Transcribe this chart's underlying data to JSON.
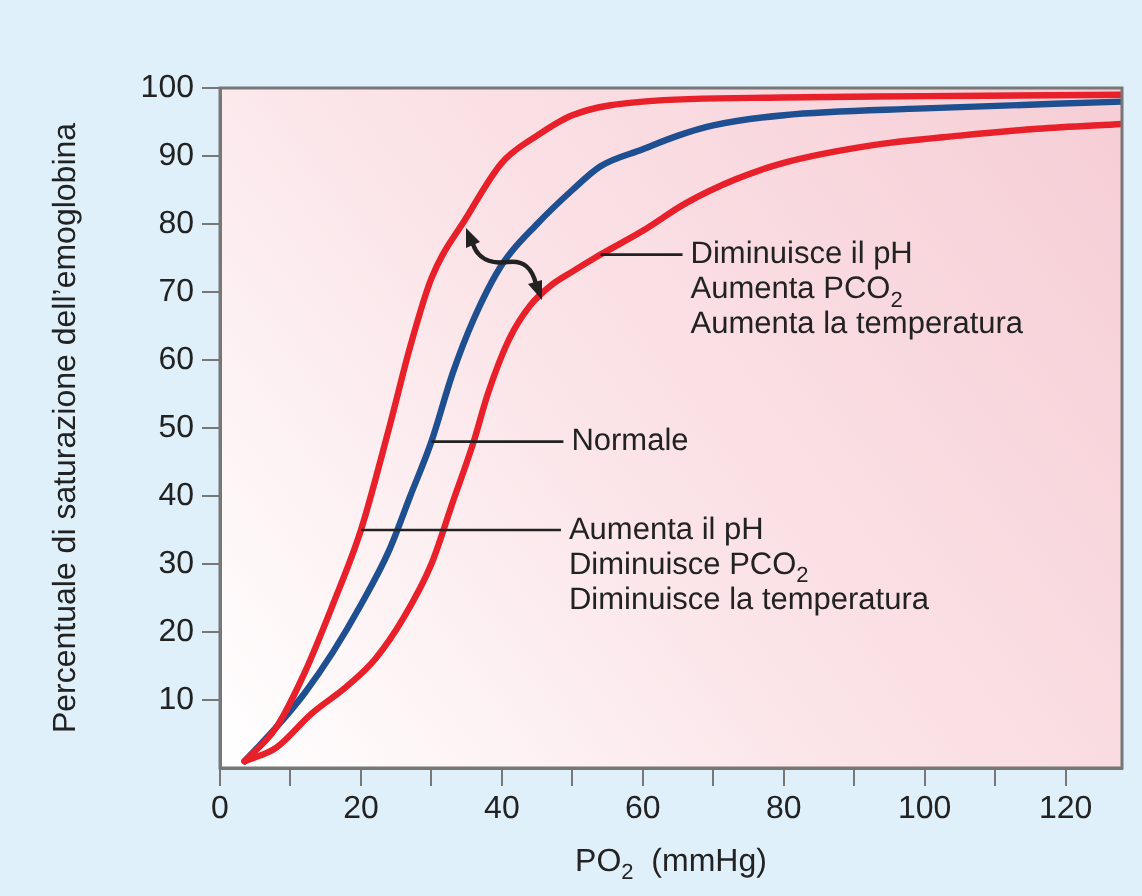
{
  "chart_data": {
    "type": "line",
    "xlabel": "PO$_{2}$  (mmHg)",
    "ylabel": "Percentuale di saturazione dell’emoglobina",
    "xlim": [
      0,
      128
    ],
    "ylim": [
      0,
      100
    ],
    "xticks": [
      0,
      {
        "value": 10,
        "label": null
      },
      20,
      {
        "value": 30,
        "label": null
      },
      40,
      {
        "value": 50,
        "label": null
      },
      60,
      {
        "value": 70,
        "label": null
      },
      80,
      {
        "value": 90,
        "label": null
      },
      100,
      {
        "value": 110,
        "label": null
      },
      120
    ],
    "yticks": [
      10,
      20,
      30,
      40,
      50,
      60,
      70,
      80,
      90,
      100
    ],
    "grid": false,
    "legend": false,
    "marker": "none",
    "line_style": "solid",
    "series": [
      {
        "color": "#e8202a",
        "x": [
          3.5,
          8,
          12,
          16,
          20,
          24,
          27,
          30,
          35,
          40,
          45,
          50,
          60,
          80,
          100,
          128
        ],
        "values": [
          1,
          6,
          14,
          24,
          35,
          50,
          62,
          72,
          81,
          89,
          93,
          96,
          98,
          98.6,
          98.8,
          99
        ]
      },
      {
        "color": "#1d4f91",
        "x": [
          3.5,
          8,
          12,
          16,
          20,
          24,
          27,
          30,
          33,
          36,
          40,
          45,
          50,
          54,
          60,
          65,
          70,
          80,
          100,
          128
        ],
        "values": [
          1,
          6,
          11,
          17,
          24,
          32,
          40,
          48,
          58,
          66,
          74,
          80,
          85,
          88.5,
          91,
          93,
          94.5,
          96,
          97,
          98
        ]
      },
      {
        "color": "#e8202a",
        "x": [
          3.5,
          8,
          13,
          18,
          22,
          26,
          30,
          33,
          36,
          38,
          41,
          44,
          47,
          50,
          54,
          60,
          66,
          73,
          80,
          92,
          105,
          116,
          128
        ],
        "values": [
          1,
          3,
          8,
          12,
          16,
          22,
          30,
          39,
          48,
          55,
          63,
          68,
          71,
          73,
          75.5,
          79,
          83,
          86.5,
          89,
          91.5,
          93,
          94,
          94.7
        ]
      }
    ],
    "annotations": [
      {
        "text": "Diminuisce il pH\nAumenta PCO$_{2}$\nAumenta la temperatura",
        "x": 54,
        "y": 75.5
      },
      {
        "text": "Normale",
        "x": 30,
        "y": 48
      },
      {
        "text": "Aumenta il pH\nDiminuisce PCO$_{2}$\nDiminuisce la temperatura",
        "x": 20,
        "y": 35
      }
    ]
  }
}
